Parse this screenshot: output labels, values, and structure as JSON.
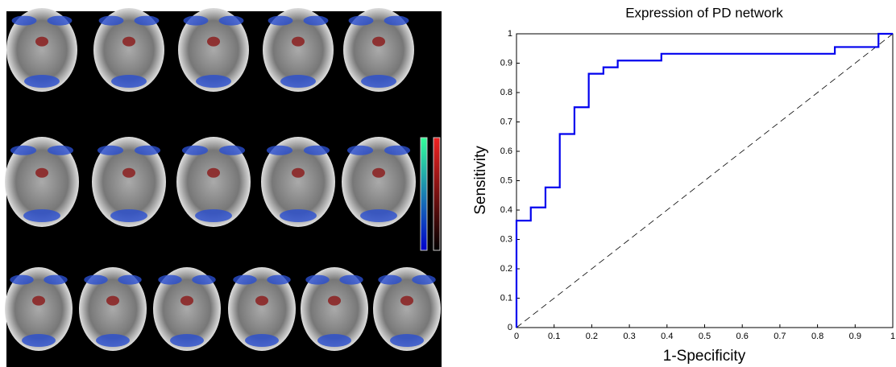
{
  "chart_data": {
    "type": "line",
    "title": "Expression of PD network",
    "x_label": "1-Specificity",
    "y_label": "Sensitivity",
    "x": [
      0,
      0,
      0.038,
      0.038,
      0.077,
      0.077,
      0.115,
      0.115,
      0.154,
      0.154,
      0.192,
      0.192,
      0.231,
      0.231,
      0.269,
      0.269,
      0.385,
      0.385,
      0.846,
      0.846,
      0.962,
      0.962,
      1
    ],
    "values": [
      0,
      0.364,
      0.364,
      0.409,
      0.409,
      0.477,
      0.477,
      0.659,
      0.659,
      0.75,
      0.75,
      0.864,
      0.864,
      0.886,
      0.886,
      0.909,
      0.909,
      0.932,
      0.932,
      0.955,
      0.955,
      1,
      1
    ],
    "color": "#0000ee",
    "xlim": [
      0,
      1
    ],
    "ylim": [
      0,
      1
    ],
    "xticks": [
      0,
      0.1,
      0.2,
      0.3,
      0.4,
      0.5,
      0.6,
      0.7,
      0.8,
      0.9,
      1
    ],
    "yticks": [
      0,
      0.1,
      0.2,
      0.3,
      0.4,
      0.5,
      0.6,
      0.7,
      0.8,
      0.9,
      1
    ],
    "grid": false
  }
}
